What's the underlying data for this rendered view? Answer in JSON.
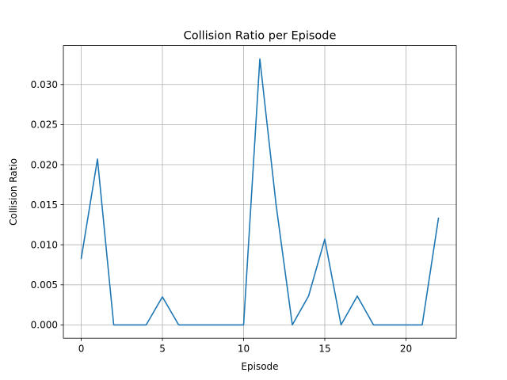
{
  "chart_data": {
    "type": "line",
    "title": "Collision Ratio per Episode",
    "xlabel": "Episode",
    "ylabel": "Collision Ratio",
    "xlim": [
      -1.1,
      23.1
    ],
    "ylim": [
      -0.00166,
      0.03486
    ],
    "grid": true,
    "xticks": [
      0,
      5,
      10,
      15,
      20
    ],
    "yticks": [
      0.0,
      0.005,
      0.01,
      0.015,
      0.02,
      0.025,
      0.03
    ],
    "xtick_labels": [
      "0",
      "5",
      "10",
      "15",
      "20"
    ],
    "ytick_labels": [
      "0.000",
      "0.005",
      "0.010",
      "0.015",
      "0.020",
      "0.025",
      "0.030"
    ],
    "series": [
      {
        "color": "#1f77b4",
        "x": [
          0,
          1,
          2,
          3,
          4,
          5,
          6,
          7,
          8,
          9,
          10,
          11,
          12,
          13,
          14,
          15,
          16,
          17,
          18,
          19,
          20,
          21,
          22
        ],
        "values": [
          0.0083,
          0.0207,
          0.0,
          0.0,
          0.0,
          0.0035,
          0.0,
          0.0,
          0.0,
          0.0,
          0.0,
          0.0332,
          0.015,
          0.0,
          0.0036,
          0.0107,
          0.0,
          0.0036,
          0.0,
          0.0,
          0.0,
          0.0,
          0.0133
        ]
      }
    ]
  }
}
